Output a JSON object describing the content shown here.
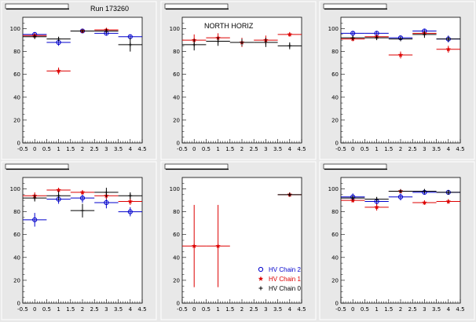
{
  "canvas": {
    "background": "#e8e8e8",
    "frame": "#ffffff"
  },
  "colors": {
    "chain2": "#0000cc",
    "chain1": "#dd0000",
    "chain0": "#000000"
  },
  "legend": {
    "entries": [
      {
        "label": "HV Chain 2",
        "marker": "open-circle",
        "color": "#0000cc"
      },
      {
        "label": "HV Chain 1",
        "marker": "star",
        "color": "#dd0000"
      },
      {
        "label": "HV Chain 0",
        "marker": "cross",
        "color": "#000000"
      }
    ]
  },
  "chart_data": [
    {
      "type": "scatter",
      "title": "Run 173260",
      "xlim": [
        -0.5,
        4.5
      ],
      "ylim": [
        0,
        110
      ],
      "xticks": [
        "-0.5",
        "0",
        "0.5",
        "1",
        "1.5",
        "2",
        "2.5",
        "3",
        "3.5",
        "4",
        "4.5"
      ],
      "yticks": [
        "0",
        "20",
        "40",
        "60",
        "80",
        "100"
      ],
      "series": [
        {
          "color": "#0000cc",
          "marker": "open-circle",
          "points": [
            {
              "x": 0,
              "y": 95,
              "yerr": 2
            },
            {
              "x": 1,
              "y": 88,
              "yerr": 3
            },
            {
              "x": 2,
              "y": 98,
              "yerr": 1
            },
            {
              "x": 3,
              "y": 96,
              "yerr": 2
            },
            {
              "x": 4,
              "y": 93,
              "yerr": 2
            }
          ]
        },
        {
          "color": "#dd0000",
          "marker": "star",
          "points": [
            {
              "x": 0,
              "y": 94,
              "yerr": 2
            },
            {
              "x": 1,
              "y": 63,
              "yerr": 3
            },
            {
              "x": 2,
              "y": 98,
              "yerr": 1
            },
            {
              "x": 3,
              "y": 99,
              "yerr": 1
            },
            {
              "x": 4,
              "y": null
            }
          ]
        },
        {
          "color": "#000000",
          "marker": "cross",
          "points": [
            {
              "x": 0,
              "y": 93,
              "yerr": 2
            },
            {
              "x": 1,
              "y": 91,
              "yerr": 2
            },
            {
              "x": 2,
              "y": 98,
              "yerr": 1
            },
            {
              "x": 3,
              "y": 98,
              "yerr": 2
            },
            {
              "x": 4,
              "y": 86,
              "yerr": 6
            }
          ]
        }
      ]
    },
    {
      "type": "scatter",
      "title": "NORTH HORIZ",
      "xlim": [
        -0.5,
        4.5
      ],
      "ylim": [
        0,
        110
      ],
      "xticks": [
        "-0.5",
        "0",
        "0.5",
        "1",
        "1.5",
        "2",
        "2.5",
        "3",
        "3.5",
        "4",
        "4.5"
      ],
      "yticks": [
        "0",
        "20",
        "40",
        "60",
        "80",
        "100"
      ],
      "series": [
        {
          "color": "#dd0000",
          "marker": "star",
          "points": [
            {
              "x": 0,
              "y": 90,
              "yerr": 5
            },
            {
              "x": 1,
              "y": 92,
              "yerr": 4
            },
            {
              "x": 2,
              "y": 88,
              "yerr": 4
            },
            {
              "x": 3,
              "y": 90,
              "yerr": 4
            },
            {
              "x": 4,
              "y": 95,
              "yerr": 2
            }
          ]
        },
        {
          "color": "#000000",
          "marker": "cross",
          "points": [
            {
              "x": 0,
              "y": 86,
              "yerr": 5
            },
            {
              "x": 1,
              "y": 89,
              "yerr": 4
            },
            {
              "x": 2,
              "y": 88,
              "yerr": 3
            },
            {
              "x": 3,
              "y": 88,
              "yerr": 4
            },
            {
              "x": 4,
              "y": 85,
              "yerr": 3
            }
          ]
        }
      ]
    },
    {
      "type": "scatter",
      "title": "",
      "xlim": [
        -0.5,
        4.5
      ],
      "ylim": [
        0,
        110
      ],
      "xticks": [
        "-0.5",
        "0",
        "0.5",
        "1",
        "1.5",
        "2",
        "2.5",
        "3",
        "3.5",
        "4",
        "4.5"
      ],
      "yticks": [
        "0",
        "20",
        "40",
        "60",
        "80",
        "100"
      ],
      "series": [
        {
          "color": "#0000cc",
          "marker": "open-circle",
          "points": [
            {
              "x": 0,
              "y": 96,
              "yerr": 2
            },
            {
              "x": 1,
              "y": 96,
              "yerr": 2
            },
            {
              "x": 2,
              "y": 92,
              "yerr": 2
            },
            {
              "x": 3,
              "y": 98,
              "yerr": 2
            },
            {
              "x": 4,
              "y": 91,
              "yerr": 3
            }
          ]
        },
        {
          "color": "#dd0000",
          "marker": "star",
          "points": [
            {
              "x": 0,
              "y": 91,
              "yerr": 2
            },
            {
              "x": 1,
              "y": 93,
              "yerr": 2
            },
            {
              "x": 2,
              "y": 77,
              "yerr": 3
            },
            {
              "x": 3,
              "y": 96,
              "yerr": 2
            },
            {
              "x": 4,
              "y": 82,
              "yerr": 3
            }
          ]
        },
        {
          "color": "#000000",
          "marker": "cross",
          "points": [
            {
              "x": 0,
              "y": 92,
              "yerr": 2
            },
            {
              "x": 1,
              "y": 92,
              "yerr": 2
            },
            {
              "x": 2,
              "y": 91,
              "yerr": 2
            },
            {
              "x": 3,
              "y": 95,
              "yerr": 3
            },
            {
              "x": 4,
              "y": 91,
              "yerr": 2
            }
          ]
        }
      ]
    },
    {
      "type": "scatter",
      "title": "",
      "xlim": [
        -0.5,
        4.5
      ],
      "ylim": [
        0,
        110
      ],
      "xticks": [
        "-0.5",
        "0",
        "0.5",
        "1",
        "1.5",
        "2",
        "2.5",
        "3",
        "3.5",
        "4",
        "4.5"
      ],
      "yticks": [
        "0",
        "20",
        "40",
        "60",
        "80",
        "100"
      ],
      "series": [
        {
          "color": "#0000cc",
          "marker": "open-circle",
          "points": [
            {
              "x": 0,
              "y": 73,
              "yerr": 6
            },
            {
              "x": 1,
              "y": 91,
              "yerr": 4
            },
            {
              "x": 2,
              "y": 92,
              "yerr": 4
            },
            {
              "x": 3,
              "y": 88,
              "yerr": 5
            },
            {
              "x": 4,
              "y": 80,
              "yerr": 4
            }
          ]
        },
        {
          "color": "#dd0000",
          "marker": "star",
          "points": [
            {
              "x": 0,
              "y": 94,
              "yerr": 3
            },
            {
              "x": 1,
              "y": 99,
              "yerr": 2
            },
            {
              "x": 2,
              "y": 97,
              "yerr": 2
            },
            {
              "x": 3,
              "y": 94,
              "yerr": 3
            },
            {
              "x": 4,
              "y": 89,
              "yerr": 3
            }
          ]
        },
        {
          "color": "#000000",
          "marker": "cross",
          "points": [
            {
              "x": 0,
              "y": 92,
              "yerr": 3
            },
            {
              "x": 1,
              "y": 94,
              "yerr": 4
            },
            {
              "x": 2,
              "y": 81,
              "yerr": 6
            },
            {
              "x": 3,
              "y": 97,
              "yerr": 4
            },
            {
              "x": 4,
              "y": 94,
              "yerr": 3
            }
          ]
        }
      ]
    },
    {
      "type": "scatter",
      "title": "",
      "xlim": [
        -0.5,
        4.5
      ],
      "ylim": [
        0,
        110
      ],
      "xticks": [
        "-0.5",
        "0",
        "0.5",
        "1",
        "1.5",
        "2",
        "2.5",
        "3",
        "3.5",
        "4",
        "4.5"
      ],
      "yticks": [
        "0",
        "20",
        "40",
        "60",
        "80",
        "100"
      ],
      "series": [
        {
          "color": "#dd0000",
          "marker": "star",
          "points": [
            {
              "x": 0,
              "y": 50,
              "yerr": 36
            },
            {
              "x": 1,
              "y": 50,
              "yerr": 36
            },
            {
              "x": 4,
              "y": 95,
              "yerr": 2
            }
          ]
        },
        {
          "color": "#000000",
          "marker": "cross",
          "points": [
            {
              "x": 4,
              "y": 95,
              "yerr": 1
            }
          ]
        }
      ],
      "legend": "bottom-right"
    },
    {
      "type": "scatter",
      "title": "",
      "xlim": [
        -0.5,
        4.5
      ],
      "ylim": [
        0,
        110
      ],
      "xticks": [
        "-0.5",
        "0",
        "0.5",
        "1",
        "1.5",
        "2",
        "2.5",
        "3",
        "3.5",
        "4",
        "4.5"
      ],
      "yticks": [
        "0",
        "20",
        "40",
        "60",
        "80",
        "100"
      ],
      "series": [
        {
          "color": "#0000cc",
          "marker": "open-circle",
          "points": [
            {
              "x": 0,
              "y": 93,
              "yerr": 3
            },
            {
              "x": 1,
              "y": 89,
              "yerr": 3
            },
            {
              "x": 2,
              "y": 93,
              "yerr": 3
            },
            {
              "x": 3,
              "y": 97,
              "yerr": 2
            },
            {
              "x": 4,
              "y": 97,
              "yerr": 2
            }
          ]
        },
        {
          "color": "#dd0000",
          "marker": "star",
          "points": [
            {
              "x": 0,
              "y": 90,
              "yerr": 2
            },
            {
              "x": 1,
              "y": 84,
              "yerr": 3
            },
            {
              "x": 2,
              "y": 98,
              "yerr": 1
            },
            {
              "x": 3,
              "y": 88,
              "yerr": 2
            },
            {
              "x": 4,
              "y": 89,
              "yerr": 2
            }
          ]
        },
        {
          "color": "#000000",
          "marker": "cross",
          "points": [
            {
              "x": 0,
              "y": 92,
              "yerr": 2
            },
            {
              "x": 1,
              "y": 91,
              "yerr": 2
            },
            {
              "x": 2,
              "y": 98,
              "yerr": 1
            },
            {
              "x": 3,
              "y": 98,
              "yerr": 2
            },
            {
              "x": 4,
              "y": 97,
              "yerr": 2
            }
          ]
        }
      ]
    }
  ]
}
